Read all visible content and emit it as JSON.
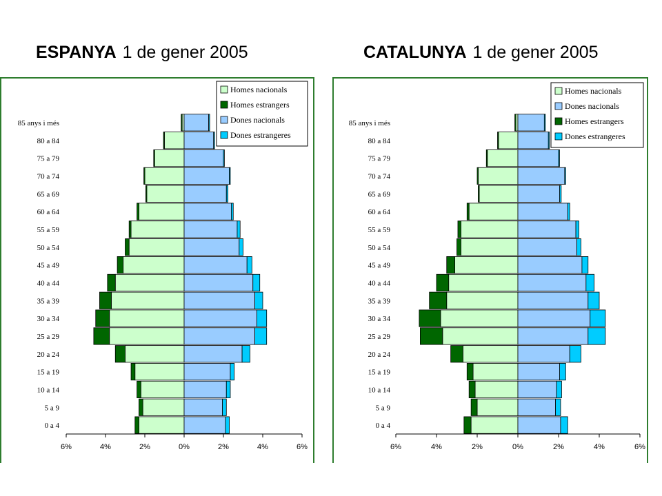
{
  "headings": [
    {
      "bold": "ESPANYA",
      "normal": "1 de gener 2005"
    },
    {
      "bold": "CATALUNYA",
      "normal": "1 de gener 2005"
    }
  ],
  "colors": {
    "homes_nacionals": "#ccffcc",
    "homes_estrangers": "#006600",
    "dones_nacionals": "#99ccff",
    "dones_estrangeres": "#00ccff",
    "frame": "#2e7d2e"
  },
  "chart_data": [
    {
      "type": "bar",
      "subtype": "population-pyramid",
      "title": "ESPANYA 1 de gener 2005",
      "categories": [
        "0 a 4",
        "5 a 9",
        "10 a 14",
        "15 a 19",
        "20 a 24",
        "25 a 29",
        "30 a 34",
        "35 a 39",
        "40 a 44",
        "45 a 49",
        "50 a 54",
        "55 a 59",
        "60 a 64",
        "65 a 69",
        "70 a 74",
        "75 a 79",
        "80 a 84",
        "85 anys i més"
      ],
      "legend": [
        "Homes nacionals",
        "Homes estrangers",
        "Dones nacionals",
        "Dones estrangeres"
      ],
      "legend_position": "top-right",
      "xlim": [
        -6,
        6
      ],
      "x_ticks": [
        "6%",
        "4%",
        "2%",
        "0%",
        "2%",
        "4%",
        "6%"
      ],
      "series": [
        {
          "name": "Homes nacionals",
          "side": "left",
          "values": [
            2.3,
            2.1,
            2.2,
            2.5,
            3.0,
            3.8,
            3.8,
            3.7,
            3.5,
            3.1,
            2.8,
            2.7,
            2.3,
            1.9,
            2.0,
            1.5,
            1.0,
            0.1
          ]
        },
        {
          "name": "Homes estrangers",
          "side": "left",
          "values": [
            0.2,
            0.2,
            0.2,
            0.2,
            0.5,
            0.8,
            0.7,
            0.6,
            0.4,
            0.3,
            0.2,
            0.1,
            0.1,
            0.05,
            0.05,
            0.05,
            0.05,
            0.05
          ]
        },
        {
          "name": "Dones nacionals",
          "side": "right",
          "values": [
            2.1,
            1.95,
            2.15,
            2.35,
            2.95,
            3.6,
            3.7,
            3.6,
            3.5,
            3.2,
            2.8,
            2.7,
            2.4,
            2.15,
            2.3,
            2.0,
            1.5,
            1.25
          ]
        },
        {
          "name": "Dones estrangeres",
          "side": "right",
          "values": [
            0.2,
            0.2,
            0.2,
            0.2,
            0.4,
            0.6,
            0.5,
            0.4,
            0.35,
            0.25,
            0.2,
            0.15,
            0.1,
            0.08,
            0.05,
            0.05,
            0.05,
            0.05
          ]
        }
      ]
    },
    {
      "type": "bar",
      "subtype": "population-pyramid",
      "title": "CATALUNYA 1 de gener 2005",
      "categories": [
        "0 a 4",
        "5 a 9",
        "10 a 14",
        "15 a 19",
        "20 a 24",
        "25 a 29",
        "30 a 34",
        "35 a 39",
        "40 a 44",
        "45 a 49",
        "50 a 54",
        "55 a 59",
        "60 a 64",
        "65 a 69",
        "70 a 74",
        "75 a 79",
        "80 a 84",
        "85 anys i més"
      ],
      "legend": [
        "Homes nacionals",
        "Dones nacionals",
        "Homes estrangers",
        "Dones estrangeres"
      ],
      "legend_position": "top-right",
      "xlim": [
        -6,
        6
      ],
      "x_ticks": [
        "6%",
        "4%",
        "2%",
        "0%",
        "2%",
        "4%",
        "6%"
      ],
      "series": [
        {
          "name": "Homes nacionals",
          "side": "left",
          "values": [
            2.3,
            2.0,
            2.1,
            2.2,
            2.7,
            3.7,
            3.8,
            3.5,
            3.4,
            3.1,
            2.8,
            2.8,
            2.4,
            1.9,
            1.95,
            1.5,
            0.95,
            0.1
          ]
        },
        {
          "name": "Homes estrangers",
          "side": "left",
          "values": [
            0.35,
            0.3,
            0.3,
            0.3,
            0.6,
            1.1,
            1.05,
            0.85,
            0.6,
            0.4,
            0.2,
            0.15,
            0.1,
            0.05,
            0.05,
            0.05,
            0.05,
            0.05
          ]
        },
        {
          "name": "Dones nacionals",
          "side": "right",
          "values": [
            2.1,
            1.85,
            1.9,
            2.05,
            2.55,
            3.45,
            3.55,
            3.45,
            3.35,
            3.15,
            2.9,
            2.85,
            2.45,
            2.05,
            2.3,
            2.0,
            1.5,
            1.3
          ]
        },
        {
          "name": "Dones estrangeres",
          "side": "right",
          "values": [
            0.35,
            0.25,
            0.25,
            0.3,
            0.55,
            0.85,
            0.75,
            0.55,
            0.4,
            0.3,
            0.2,
            0.15,
            0.1,
            0.08,
            0.05,
            0.05,
            0.05,
            0.05
          ]
        }
      ]
    }
  ]
}
